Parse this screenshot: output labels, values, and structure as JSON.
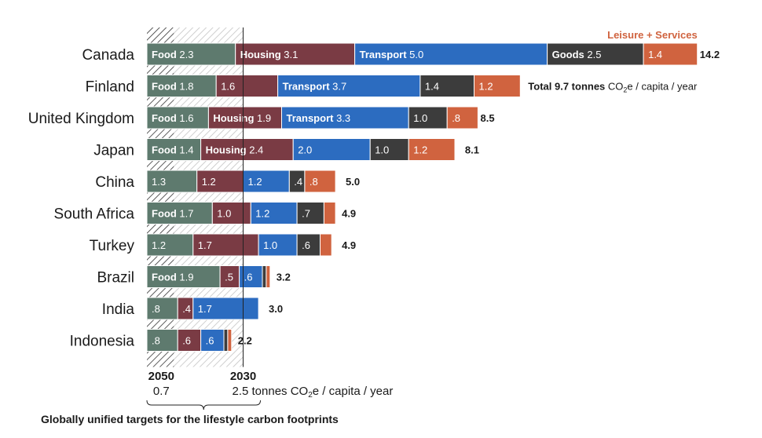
{
  "chart_data": {
    "type": "bar",
    "orientation": "horizontal",
    "stacked": true,
    "categories": [
      "Canada",
      "Finland",
      "United Kingdom",
      "Japan",
      "China",
      "South Africa",
      "Turkey",
      "Brazil",
      "India",
      "Indonesia"
    ],
    "series": [
      {
        "key": "food",
        "name": "Food",
        "color": "#5e7a6e",
        "values": [
          2.3,
          1.8,
          1.6,
          1.4,
          1.3,
          1.7,
          1.2,
          1.9,
          0.8,
          0.8
        ],
        "labels": [
          "2.3",
          "1.8",
          "1.6",
          "1.4",
          "1.3",
          "1.7",
          "1.2",
          "1.9",
          ".8",
          ".8"
        ],
        "show_name": [
          true,
          true,
          true,
          true,
          false,
          true,
          false,
          true,
          false,
          false
        ]
      },
      {
        "key": "housing",
        "name": "Housing",
        "color": "#7a3b44",
        "values": [
          3.1,
          1.6,
          1.9,
          2.4,
          1.2,
          1.0,
          1.7,
          0.5,
          0.4,
          0.6
        ],
        "labels": [
          "3.1",
          "1.6",
          "1.9",
          "2.4",
          "1.2",
          "1.0",
          "1.7",
          ".5",
          ".4",
          ".6"
        ],
        "show_name": [
          true,
          false,
          true,
          true,
          false,
          false,
          false,
          false,
          false,
          false
        ]
      },
      {
        "key": "transport",
        "name": "Transport",
        "color": "#2c6cc0",
        "values": [
          5.0,
          3.7,
          3.3,
          2.0,
          1.2,
          1.2,
          1.0,
          0.6,
          1.7,
          0.6
        ],
        "labels": [
          "5.0",
          "3.7",
          "3.3",
          "2.0",
          "1.2",
          "1.2",
          "1.0",
          ".6",
          "1.7",
          ".6"
        ],
        "show_name": [
          true,
          true,
          true,
          false,
          false,
          false,
          false,
          false,
          false,
          false
        ]
      },
      {
        "key": "goods",
        "name": "Goods",
        "color": "#3c3c3c",
        "values": [
          2.5,
          1.4,
          1.0,
          1.0,
          0.4,
          0.7,
          0.6,
          0.1,
          0.0,
          0.1
        ],
        "labels": [
          "2.5",
          "1.4",
          "1.0",
          "1.0",
          ".4",
          ".7",
          ".6",
          "",
          "",
          ""
        ],
        "show_name": [
          true,
          false,
          false,
          false,
          false,
          false,
          false,
          false,
          false,
          false
        ]
      },
      {
        "key": "leisure",
        "name": "Leisure + Services",
        "color": "#d0633f",
        "values": [
          1.4,
          1.2,
          0.8,
          1.2,
          0.8,
          0.3,
          0.3,
          0.1,
          0.0,
          0.1
        ],
        "labels": [
          "1.4",
          "1.2",
          ".8",
          "1.2",
          ".8",
          "",
          "",
          "",
          "",
          ""
        ],
        "show_name": [
          false,
          false,
          false,
          false,
          false,
          false,
          false,
          false,
          false,
          false
        ]
      }
    ],
    "totals": [
      14.2,
      9.7,
      8.5,
      8.1,
      5.0,
      4.9,
      4.9,
      3.2,
      3.0,
      2.2
    ],
    "total_labels": [
      "14.2",
      "",
      "8.5",
      "8.1",
      "5.0",
      "4.9",
      "4.9",
      "3.2",
      "3.0",
      "2.2"
    ],
    "finland_note": {
      "prefix": "Total 9.7 tonnes",
      "co2": "CO",
      "sub": "2",
      "suffix": "e / capita / year"
    },
    "legend_label": "Leisure + Services",
    "targets": [
      {
        "year": "2050",
        "value": 0.7,
        "value_label": "0.7"
      },
      {
        "year": "2030",
        "value": 2.5,
        "value_label": "2.5 tonnes",
        "unit_co2": "CO",
        "unit_sub": "2",
        "unit_suffix": "e / capita / year"
      }
    ],
    "caption": "Globally unified targets for the lifestyle carbon footprints",
    "xlim": [
      0,
      14.2
    ]
  }
}
